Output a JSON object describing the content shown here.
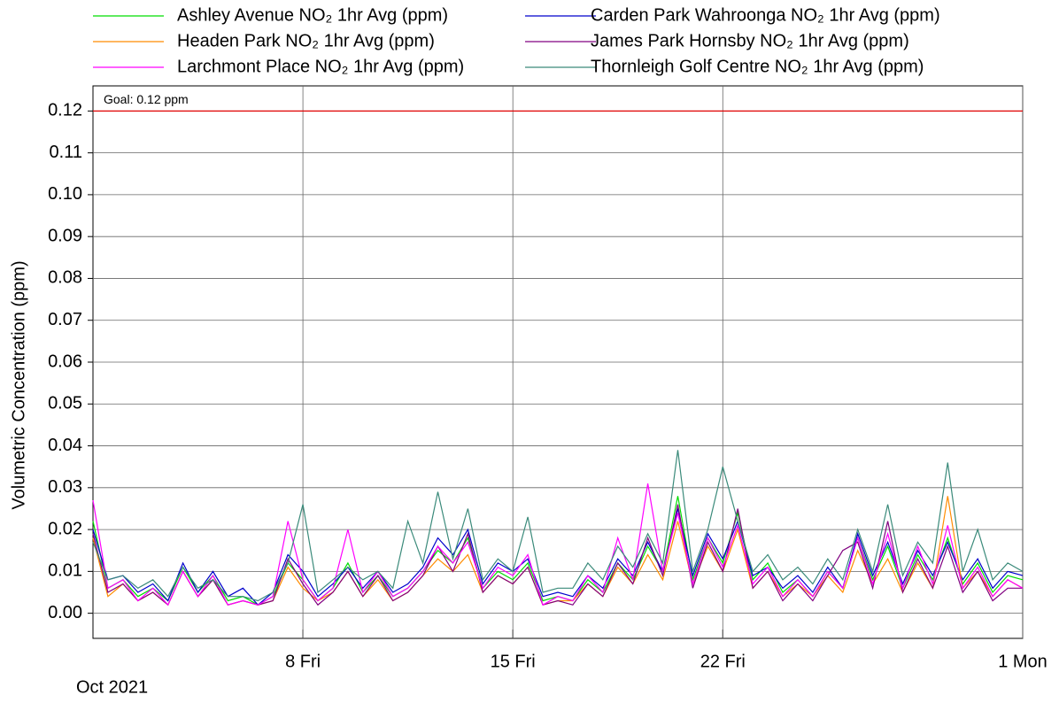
{
  "chart_data": {
    "type": "line",
    "y_label": "Volumetric Concentration (ppm)",
    "x_sublabel": "Oct 2021",
    "x": [
      1,
      1.5,
      2,
      2.5,
      3,
      3.5,
      4,
      4.5,
      5,
      5.5,
      6,
      6.5,
      7,
      7.5,
      8,
      8.5,
      9,
      9.5,
      10,
      10.5,
      11,
      11.5,
      12,
      12.5,
      13,
      13.5,
      14,
      14.5,
      15,
      15.5,
      16,
      16.5,
      17,
      17.5,
      18,
      18.5,
      19,
      19.5,
      20,
      20.5,
      21,
      21.5,
      22,
      22.5,
      23,
      23.5,
      24,
      24.5,
      25,
      25.5,
      26,
      26.5,
      27,
      27.5,
      28,
      28.5,
      29,
      29.5,
      30,
      30.5,
      31,
      31.5,
      32
    ],
    "xlim": [
      1,
      32
    ],
    "xticks": [
      {
        "value": 8,
        "label": "8 Fri"
      },
      {
        "value": 15,
        "label": "15 Fri"
      },
      {
        "value": 22,
        "label": "22 Fri"
      },
      {
        "value": 32,
        "label": "1 Mon"
      }
    ],
    "ylim": [
      -0.006,
      0.126
    ],
    "yticks": [
      {
        "value": 0,
        "label": "0.00"
      },
      {
        "value": 0.01,
        "label": "0.01"
      },
      {
        "value": 0.02,
        "label": "0.02"
      },
      {
        "value": 0.03,
        "label": "0.03"
      },
      {
        "value": 0.04,
        "label": "0.04"
      },
      {
        "value": 0.05,
        "label": "0.05"
      },
      {
        "value": 0.06,
        "label": "0.06"
      },
      {
        "value": 0.07,
        "label": "0.07"
      },
      {
        "value": 0.08,
        "label": "0.08"
      },
      {
        "value": 0.09,
        "label": "0.09"
      },
      {
        "value": 0.1,
        "label": "0.10"
      },
      {
        "value": 0.11,
        "label": "0.11"
      },
      {
        "value": 0.12,
        "label": "0.12"
      }
    ],
    "grid": true,
    "annotation": {
      "text": "Goal: 0.12 ppm",
      "value": 0.12,
      "color": "#e00000"
    },
    "series": [
      {
        "name": "Ashley Avenue NO₂ 1hr Avg (ppm)",
        "color": "#00dd00",
        "values": [
          0.022,
          0.006,
          0.008,
          0.004,
          0.006,
          0.003,
          0.011,
          0.005,
          0.009,
          0.003,
          0.004,
          0.002,
          0.004,
          0.012,
          0.008,
          0.003,
          0.006,
          0.012,
          0.005,
          0.009,
          0.004,
          0.006,
          0.01,
          0.015,
          0.012,
          0.018,
          0.006,
          0.01,
          0.008,
          0.012,
          0.003,
          0.004,
          0.003,
          0.008,
          0.005,
          0.012,
          0.008,
          0.016,
          0.01,
          0.028,
          0.008,
          0.018,
          0.012,
          0.024,
          0.008,
          0.012,
          0.005,
          0.008,
          0.004,
          0.01,
          0.006,
          0.018,
          0.008,
          0.016,
          0.006,
          0.014,
          0.008,
          0.018,
          0.007,
          0.012,
          0.005,
          0.009,
          0.008
        ]
      },
      {
        "name": "Carden Park Wahroonga NO₂ 1hr Avg (ppm)",
        "color": "#0000cc",
        "values": [
          0.02,
          0.008,
          0.009,
          0.005,
          0.007,
          0.003,
          0.012,
          0.005,
          0.01,
          0.004,
          0.006,
          0.002,
          0.005,
          0.014,
          0.01,
          0.004,
          0.007,
          0.011,
          0.006,
          0.01,
          0.005,
          0.007,
          0.011,
          0.018,
          0.014,
          0.02,
          0.007,
          0.012,
          0.01,
          0.013,
          0.004,
          0.005,
          0.004,
          0.009,
          0.006,
          0.013,
          0.009,
          0.017,
          0.01,
          0.025,
          0.009,
          0.019,
          0.013,
          0.022,
          0.009,
          0.011,
          0.006,
          0.009,
          0.005,
          0.011,
          0.006,
          0.019,
          0.009,
          0.017,
          0.007,
          0.015,
          0.009,
          0.017,
          0.008,
          0.013,
          0.006,
          0.01,
          0.009
        ]
      },
      {
        "name": "Headen Park NO₂ 1hr Avg (ppm)",
        "color": "#ff8c00",
        "values": [
          0.018,
          0.004,
          0.007,
          0.003,
          0.005,
          0.002,
          0.01,
          0.004,
          0.008,
          0.002,
          0.003,
          0.002,
          0.003,
          0.011,
          0.006,
          0.003,
          0.005,
          0.01,
          0.004,
          0.008,
          0.003,
          0.005,
          0.009,
          0.013,
          0.01,
          0.014,
          0.005,
          0.009,
          0.007,
          0.011,
          0.002,
          0.003,
          0.003,
          0.007,
          0.004,
          0.011,
          0.007,
          0.014,
          0.008,
          0.022,
          0.007,
          0.016,
          0.01,
          0.02,
          0.006,
          0.01,
          0.004,
          0.007,
          0.004,
          0.009,
          0.005,
          0.015,
          0.007,
          0.013,
          0.005,
          0.012,
          0.006,
          0.028,
          0.006,
          0.01,
          0.004,
          0.008,
          0.006
        ]
      },
      {
        "name": "James Park Hornsby NO₂ 1hr Avg (ppm)",
        "color": "#800080",
        "values": [
          0.019,
          0.005,
          0.007,
          0.003,
          0.005,
          0.002,
          0.01,
          0.004,
          0.008,
          0.002,
          0.003,
          0.002,
          0.003,
          0.013,
          0.007,
          0.002,
          0.005,
          0.01,
          0.004,
          0.009,
          0.003,
          0.005,
          0.009,
          0.016,
          0.01,
          0.019,
          0.005,
          0.009,
          0.007,
          0.011,
          0.002,
          0.003,
          0.002,
          0.007,
          0.004,
          0.012,
          0.007,
          0.018,
          0.009,
          0.026,
          0.006,
          0.017,
          0.01,
          0.025,
          0.006,
          0.01,
          0.003,
          0.007,
          0.003,
          0.009,
          0.015,
          0.017,
          0.006,
          0.022,
          0.005,
          0.013,
          0.006,
          0.016,
          0.005,
          0.01,
          0.003,
          0.006,
          0.006
        ]
      },
      {
        "name": "Larchmont Place NO₂ 1hr Avg (ppm)",
        "color": "#ff00ff",
        "values": [
          0.027,
          0.006,
          0.008,
          0.003,
          0.006,
          0.002,
          0.01,
          0.004,
          0.009,
          0.002,
          0.003,
          0.002,
          0.004,
          0.022,
          0.008,
          0.003,
          0.006,
          0.02,
          0.005,
          0.01,
          0.004,
          0.006,
          0.01,
          0.016,
          0.012,
          0.017,
          0.006,
          0.011,
          0.009,
          0.014,
          0.002,
          0.004,
          0.003,
          0.009,
          0.005,
          0.018,
          0.008,
          0.031,
          0.01,
          0.024,
          0.007,
          0.018,
          0.011,
          0.021,
          0.007,
          0.011,
          0.004,
          0.008,
          0.004,
          0.01,
          0.006,
          0.018,
          0.007,
          0.019,
          0.006,
          0.016,
          0.007,
          0.021,
          0.006,
          0.011,
          0.004,
          0.008,
          0.006
        ]
      },
      {
        "name": "Thornleigh Golf Centre NO₂ 1hr Avg (ppm)",
        "color": "#3a8a7a",
        "values": [
          0.017,
          0.008,
          0.009,
          0.006,
          0.008,
          0.004,
          0.011,
          0.006,
          0.008,
          0.004,
          0.004,
          0.003,
          0.005,
          0.012,
          0.026,
          0.005,
          0.008,
          0.011,
          0.008,
          0.01,
          0.006,
          0.022,
          0.012,
          0.029,
          0.013,
          0.025,
          0.008,
          0.013,
          0.01,
          0.023,
          0.005,
          0.006,
          0.006,
          0.012,
          0.008,
          0.016,
          0.011,
          0.019,
          0.012,
          0.039,
          0.01,
          0.02,
          0.035,
          0.022,
          0.01,
          0.014,
          0.008,
          0.011,
          0.007,
          0.013,
          0.008,
          0.02,
          0.01,
          0.026,
          0.009,
          0.017,
          0.012,
          0.036,
          0.01,
          0.02,
          0.008,
          0.012,
          0.01
        ]
      }
    ]
  }
}
